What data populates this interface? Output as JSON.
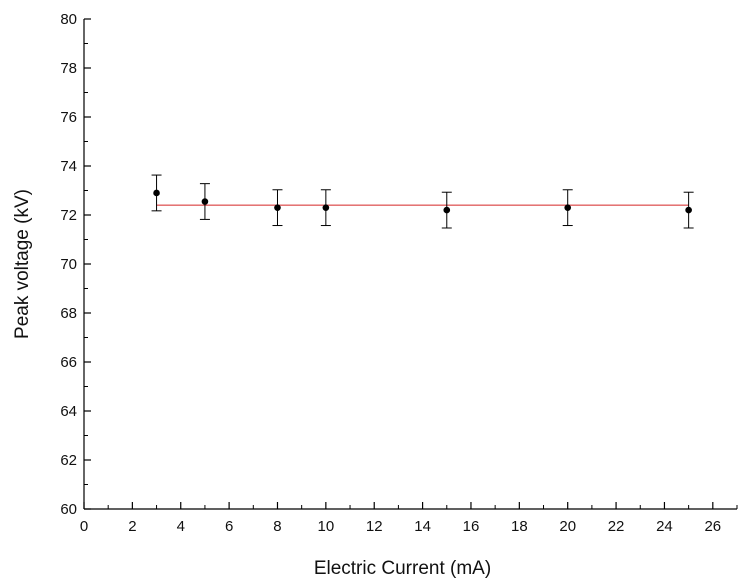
{
  "chart_data": {
    "type": "scatter",
    "title": "",
    "xlabel": "Electric Current (mA)",
    "ylabel": "Peak voltage (kV)",
    "xlim": [
      0,
      27
    ],
    "ylim": [
      60,
      80
    ],
    "x_ticks": [
      0,
      2,
      4,
      6,
      8,
      10,
      12,
      14,
      16,
      18,
      20,
      22,
      24,
      26
    ],
    "y_ticks": [
      60,
      62,
      64,
      66,
      68,
      70,
      72,
      74,
      76,
      78,
      80
    ],
    "x_tick_labels": [
      "0",
      "2",
      "4",
      "6",
      "8",
      "10",
      "12",
      "14",
      "16",
      "18",
      "20",
      "22",
      "24",
      "26"
    ],
    "y_tick_labels": [
      "60",
      "62",
      "64",
      "66",
      "68",
      "70",
      "72",
      "74",
      "76",
      "78",
      "80"
    ],
    "grid": false,
    "legend": "none",
    "series": [
      {
        "points": [
          {
            "x": 3,
            "y": 72.9,
            "error": 0.73
          },
          {
            "x": 5,
            "y": 72.55,
            "error": 0.73
          },
          {
            "x": 8,
            "y": 72.3,
            "error": 0.73
          },
          {
            "x": 10,
            "y": 72.3,
            "error": 0.73
          },
          {
            "x": 15,
            "y": 72.2,
            "error": 0.73
          },
          {
            "x": 20,
            "y": 72.3,
            "error": 0.73
          },
          {
            "x": 25,
            "y": 72.2,
            "error": 0.73
          }
        ],
        "marker_color": "#000000",
        "errorbar_color": "#000000"
      }
    ],
    "reference_line": {
      "y": 72.4,
      "x_range": [
        3,
        25
      ],
      "color": "#e06060"
    }
  }
}
